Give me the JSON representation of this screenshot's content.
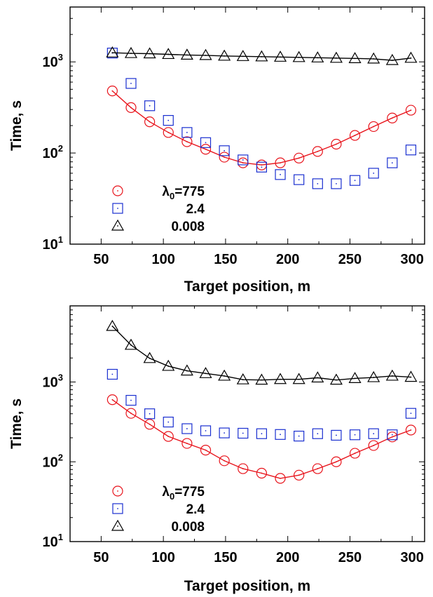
{
  "chart_data": [
    {
      "type": "scatter",
      "xlabel": "Target position, m",
      "ylabel": "Time, s",
      "xlim": [
        25,
        310
      ],
      "ylim": [
        10,
        4000
      ],
      "yscale": "log",
      "xticks": [
        "50",
        "100",
        "150",
        "200",
        "250",
        "300"
      ],
      "yticks": [
        {
          "base": "10",
          "exp": "1",
          "value": 10
        },
        {
          "base": "10",
          "exp": "2",
          "value": 100
        },
        {
          "base": "10",
          "exp": "3",
          "value": 1000
        }
      ],
      "legend_position": "bottom-left",
      "legend_title_prefix": "λ",
      "legend_title_sub": "0",
      "series": [
        {
          "name": "=775",
          "marker": "circle",
          "color": "#e8141c",
          "fit_line": true,
          "x": [
            59,
            74,
            89,
            104,
            119,
            134,
            149,
            164,
            179,
            194,
            209,
            224,
            239,
            254,
            269,
            284,
            299
          ],
          "y": [
            480,
            315,
            220,
            168,
            133,
            110,
            90,
            78,
            74,
            78,
            88,
            104,
            125,
            156,
            195,
            242,
            295
          ]
        },
        {
          "name": "2.4",
          "marker": "square",
          "color": "#1a2fd0",
          "fit_line": false,
          "x": [
            59,
            74,
            89,
            104,
            119,
            134,
            149,
            164,
            179,
            194,
            209,
            224,
            239,
            254,
            269,
            284,
            299
          ],
          "y": [
            1250,
            580,
            330,
            228,
            168,
            130,
            106,
            84,
            70,
            58,
            51,
            46,
            46,
            50,
            60,
            78,
            108
          ]
        },
        {
          "name": "0.008",
          "marker": "triangle",
          "color": "#000000",
          "fit_line": true,
          "x": [
            59,
            74,
            89,
            104,
            119,
            134,
            149,
            164,
            179,
            194,
            209,
            224,
            239,
            254,
            269,
            284,
            299
          ],
          "y": [
            1260,
            1240,
            1230,
            1210,
            1190,
            1180,
            1160,
            1150,
            1140,
            1130,
            1120,
            1110,
            1100,
            1090,
            1080,
            1040,
            1100
          ]
        }
      ]
    },
    {
      "type": "scatter",
      "xlabel": "Target position, m",
      "ylabel": "Time, s",
      "xlim": [
        25,
        310
      ],
      "ylim": [
        10,
        9000
      ],
      "yscale": "log",
      "xticks": [
        "50",
        "100",
        "150",
        "200",
        "250",
        "300"
      ],
      "yticks": [
        {
          "base": "10",
          "exp": "1",
          "value": 10
        },
        {
          "base": "10",
          "exp": "2",
          "value": 100
        },
        {
          "base": "10",
          "exp": "3",
          "value": 1000
        }
      ],
      "legend_position": "bottom-left",
      "legend_title_prefix": "λ",
      "legend_title_sub": "0",
      "series": [
        {
          "name": "=775",
          "marker": "circle",
          "color": "#e8141c",
          "fit_line": true,
          "x": [
            59,
            74,
            89,
            104,
            119,
            134,
            149,
            164,
            179,
            194,
            209,
            224,
            239,
            254,
            269,
            284,
            299
          ],
          "y": [
            600,
            405,
            295,
            208,
            170,
            140,
            103,
            82,
            72,
            62,
            68,
            82,
            100,
            128,
            160,
            205,
            250
          ]
        },
        {
          "name": "2.4",
          "marker": "square",
          "color": "#1a2fd0",
          "fit_line": false,
          "x": [
            59,
            74,
            89,
            104,
            119,
            134,
            149,
            164,
            179,
            194,
            209,
            224,
            239,
            254,
            269,
            284,
            299
          ],
          "y": [
            1250,
            590,
            400,
            315,
            260,
            245,
            230,
            228,
            225,
            220,
            210,
            225,
            215,
            218,
            225,
            218,
            405
          ]
        },
        {
          "name": "0.008",
          "marker": "triangle",
          "color": "#000000",
          "fit_line": true,
          "x": [
            59,
            74,
            89,
            104,
            119,
            134,
            149,
            164,
            179,
            194,
            209,
            224,
            239,
            254,
            269,
            284,
            299
          ],
          "y": [
            5000,
            2900,
            1980,
            1580,
            1380,
            1280,
            1190,
            1070,
            1060,
            1080,
            1080,
            1130,
            1060,
            1110,
            1140,
            1190,
            1150
          ]
        }
      ]
    }
  ]
}
